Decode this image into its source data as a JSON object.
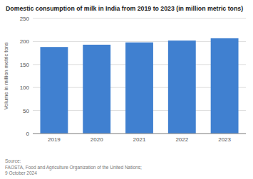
{
  "chart_data": {
    "type": "bar",
    "title": "Domestic consumption of milk in India from 2019 to 2023 (in million metric tons)",
    "categories": [
      "2019",
      "2020",
      "2021",
      "2022",
      "2023"
    ],
    "values": [
      188,
      193,
      198,
      202,
      207
    ],
    "color": "#4080d0",
    "ylabel": "Volume in million metric tons",
    "ylim": [
      0,
      250
    ],
    "yticks": [
      0,
      50,
      100,
      150,
      200,
      250
    ],
    "grid": true,
    "annotations": [
      "Source:\nFAOSTA, Food and Agriculture Organization of the United Nations;\n9 October 2024"
    ]
  }
}
